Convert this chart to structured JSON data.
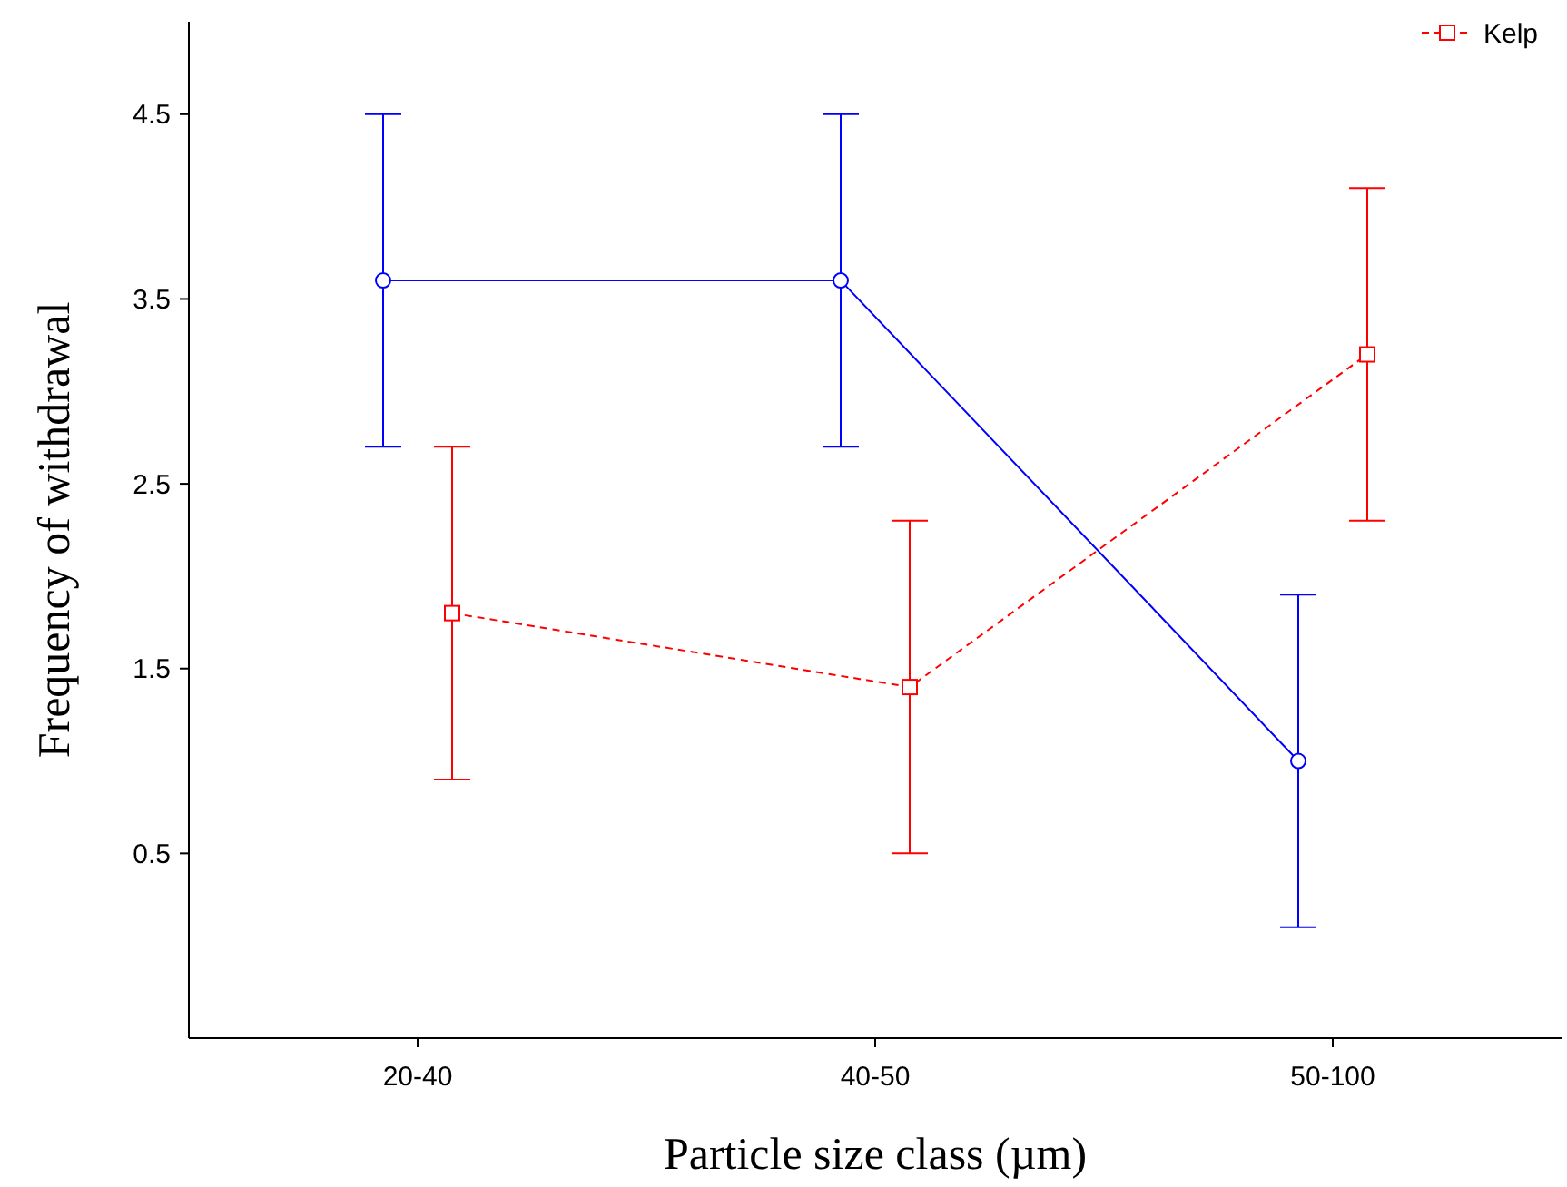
{
  "chart_data": {
    "type": "line",
    "xlabel": "Particle size class (µm)",
    "ylabel": "Frequency of withdrawal",
    "categories": [
      "20-40",
      "40-50",
      "50-100"
    ],
    "ylim": [
      -0.5,
      5
    ],
    "yticks": [
      0.5,
      1.5,
      2.5,
      3.5,
      4.5
    ],
    "grid": false,
    "legend": "top right",
    "series": [
      {
        "color": "#0000ff",
        "values": [
          3.6,
          3.6,
          1.0
        ],
        "errors": [
          0.9,
          0.9,
          0.9
        ],
        "marker": "circle",
        "line_style": "solid"
      },
      {
        "name": "Kelp",
        "color": "#ff0000",
        "values": [
          1.8,
          1.4,
          3.2
        ],
        "errors": [
          0.9,
          0.9,
          0.9
        ],
        "marker": "square",
        "line_style": "dashed"
      }
    ]
  }
}
